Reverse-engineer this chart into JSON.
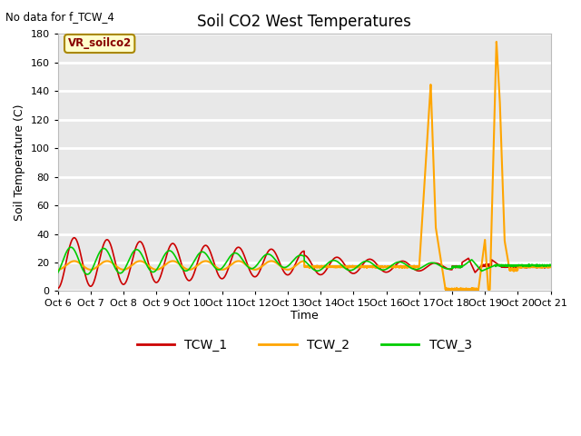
{
  "title": "Soil CO2 West Temperatures",
  "no_data_note": "No data for f_TCW_4",
  "ylabel": "Soil Temperature (C)",
  "xlabel": "Time",
  "ylim": [
    0,
    180
  ],
  "yticks": [
    0,
    20,
    40,
    60,
    80,
    100,
    120,
    140,
    160,
    180
  ],
  "xtick_labels": [
    "Oct 6",
    "Oct 7",
    "Oct 8",
    "Oct 9",
    "Oct 10",
    "Oct 11",
    "Oct 12",
    "Oct 13",
    "Oct 14",
    "Oct 15",
    "Oct 16",
    "Oct 17",
    "Oct 18",
    "Oct 19",
    "Oct 20",
    "Oct 21"
  ],
  "bg_color": "#e8e8e8",
  "grid_color": "#ffffff",
  "fig_bg_color": "#ffffff",
  "line_colors": {
    "TCW_1": "#cc0000",
    "TCW_2": "#ffa500",
    "TCW_3": "#00cc00"
  },
  "legend_box_label": "VR_soilco2",
  "legend_box_color": "#ffffcc",
  "legend_box_border": "#aa8800",
  "title_fontsize": 12,
  "label_fontsize": 9,
  "tick_fontsize": 8
}
